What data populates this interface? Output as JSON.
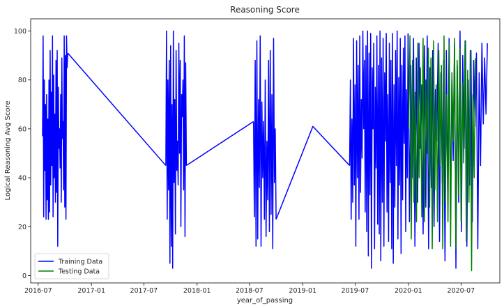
{
  "chart_data": {
    "type": "line",
    "title": "Reasoning Score",
    "xlabel": "year_of_passing",
    "ylabel": "Logical Reasoning Avg Score",
    "x_is_date": true,
    "xlim": [
      "2016-06-05",
      "2020-11-12"
    ],
    "ylim": [
      -3,
      105
    ],
    "xticks": [
      "2016-07-01",
      "2017-01-01",
      "2017-07-01",
      "2018-01-01",
      "2018-07-01",
      "2019-01-01",
      "2019-07-01",
      "2020-01-01",
      "2020-07-01"
    ],
    "xtick_labels": [
      "2016-07",
      "2017-01",
      "2017-07",
      "2018-01",
      "2018-07",
      "2019-01",
      "2019-07",
      "2020-01",
      "2020-07"
    ],
    "yticks": [
      0,
      20,
      40,
      60,
      80,
      100
    ],
    "grid": false,
    "legend": {
      "position": "bottom-left"
    },
    "series": [
      {
        "name": "Training Data",
        "color": "#0000ff",
        "segments": [
          {
            "x_start": "2016-07-16",
            "x_end": "2016-10-11",
            "values": [
              57,
              98,
              24,
              80,
              43,
              70,
              23,
              74,
              31,
              64,
              23,
              80,
              26,
              92,
              37,
              75,
              45,
              98,
              24,
              82,
              40,
              66,
              30,
              88,
              34,
              92,
              12,
              77,
              52,
              60,
              44,
              74,
              30,
              89,
              56,
              63,
              35,
              98,
              28,
              90,
              23,
              98,
              85,
              91
            ]
          },
          {
            "x_start": "2016-10-11",
            "x_end": "2017-09-15",
            "values": [
              91,
              45
            ]
          },
          {
            "x_start": "2017-09-15",
            "x_end": "2017-11-25",
            "values": [
              45,
              100,
              23,
              80,
              35,
              88,
              5,
              94,
              12,
              70,
              3,
              100,
              38,
              72,
              17,
              92,
              43,
              55,
              37,
              95,
              50,
              88,
              20,
              74,
              65,
              80,
              35,
              98,
              16,
              87,
              45
            ]
          },
          {
            "x_start": "2017-11-25",
            "x_end": "2018-07-15",
            "values": [
              45,
              63
            ]
          },
          {
            "x_start": "2018-07-15",
            "x_end": "2018-10-01",
            "values": [
              63,
              24,
              88,
              12,
              96,
              15,
              72,
              36,
              98,
              12,
              71,
              40,
              63,
              23,
              80,
              16,
              55,
              31,
              88,
              18,
              92,
              25,
              74,
              11,
              97,
              38,
              60,
              23
            ]
          },
          {
            "x_start": "2018-10-01",
            "x_end": "2019-06-12",
            "values": [
              23,
              61,
              45
            ]
          },
          {
            "x_start": "2019-06-12",
            "x_end": "2019-12-31",
            "values": [
              45,
              80,
              23,
              64,
              30,
              97,
              37,
              78,
              12,
              96,
              40,
              86,
              23,
              98,
              34,
              72,
              48,
              100,
              60,
              88,
              26,
              94,
              18,
              100,
              8,
              91,
              33,
              99,
              3,
              85,
              60,
              95,
              11,
              77,
              44,
              98,
              21,
              86,
              17,
              100,
              6,
              89,
              30,
              97,
              12,
              83,
              55,
              99,
              26,
              74,
              14,
              95,
              38,
              88,
              11,
              99,
              5,
              78,
              28,
              92,
              45,
              100,
              15,
              81,
              37,
              97,
              9,
              86,
              31,
              93,
              54,
              98,
              18,
              76,
              40,
              99
            ]
          },
          {
            "x_start": "2019-12-31",
            "x_end": "2020-09-30",
            "values": [
              99,
              22,
              86,
              40,
              97,
              12,
              89,
              30,
              95,
              52,
              78,
              17,
              94,
              28,
              98,
              11,
              85,
              36,
              92,
              20,
              76,
              55,
              95,
              14,
              83,
              38,
              88,
              6,
              92,
              33,
              97,
              24,
              80,
              47,
              95,
              3,
              86,
              30,
              100,
              18,
              90,
              52,
              96,
              12,
              80,
              37,
              92,
              22,
              88,
              61,
              91,
              11,
              83,
              45,
              95,
              62,
              89,
              66,
              95
            ]
          }
        ]
      },
      {
        "name": "Testing Data",
        "color": "#008000",
        "segments": [
          {
            "x_start": "2020-01-02",
            "x_end": "2020-08-20",
            "values": [
              60,
              98,
              15,
              88,
              30,
              75,
              22,
              95,
              40,
              85,
              24,
              97,
              22,
              80,
              50,
              93,
              28,
              89,
              11,
              96,
              35,
              78,
              22,
              92,
              45,
              86,
              11,
              98,
              30,
              74,
              22,
              95,
              12,
              83,
              55,
              97,
              11,
              88,
              33,
              93,
              22,
              79,
              46,
              96,
              14,
              84,
              30,
              92,
              2,
              74,
              40,
              89
            ]
          }
        ]
      }
    ]
  }
}
